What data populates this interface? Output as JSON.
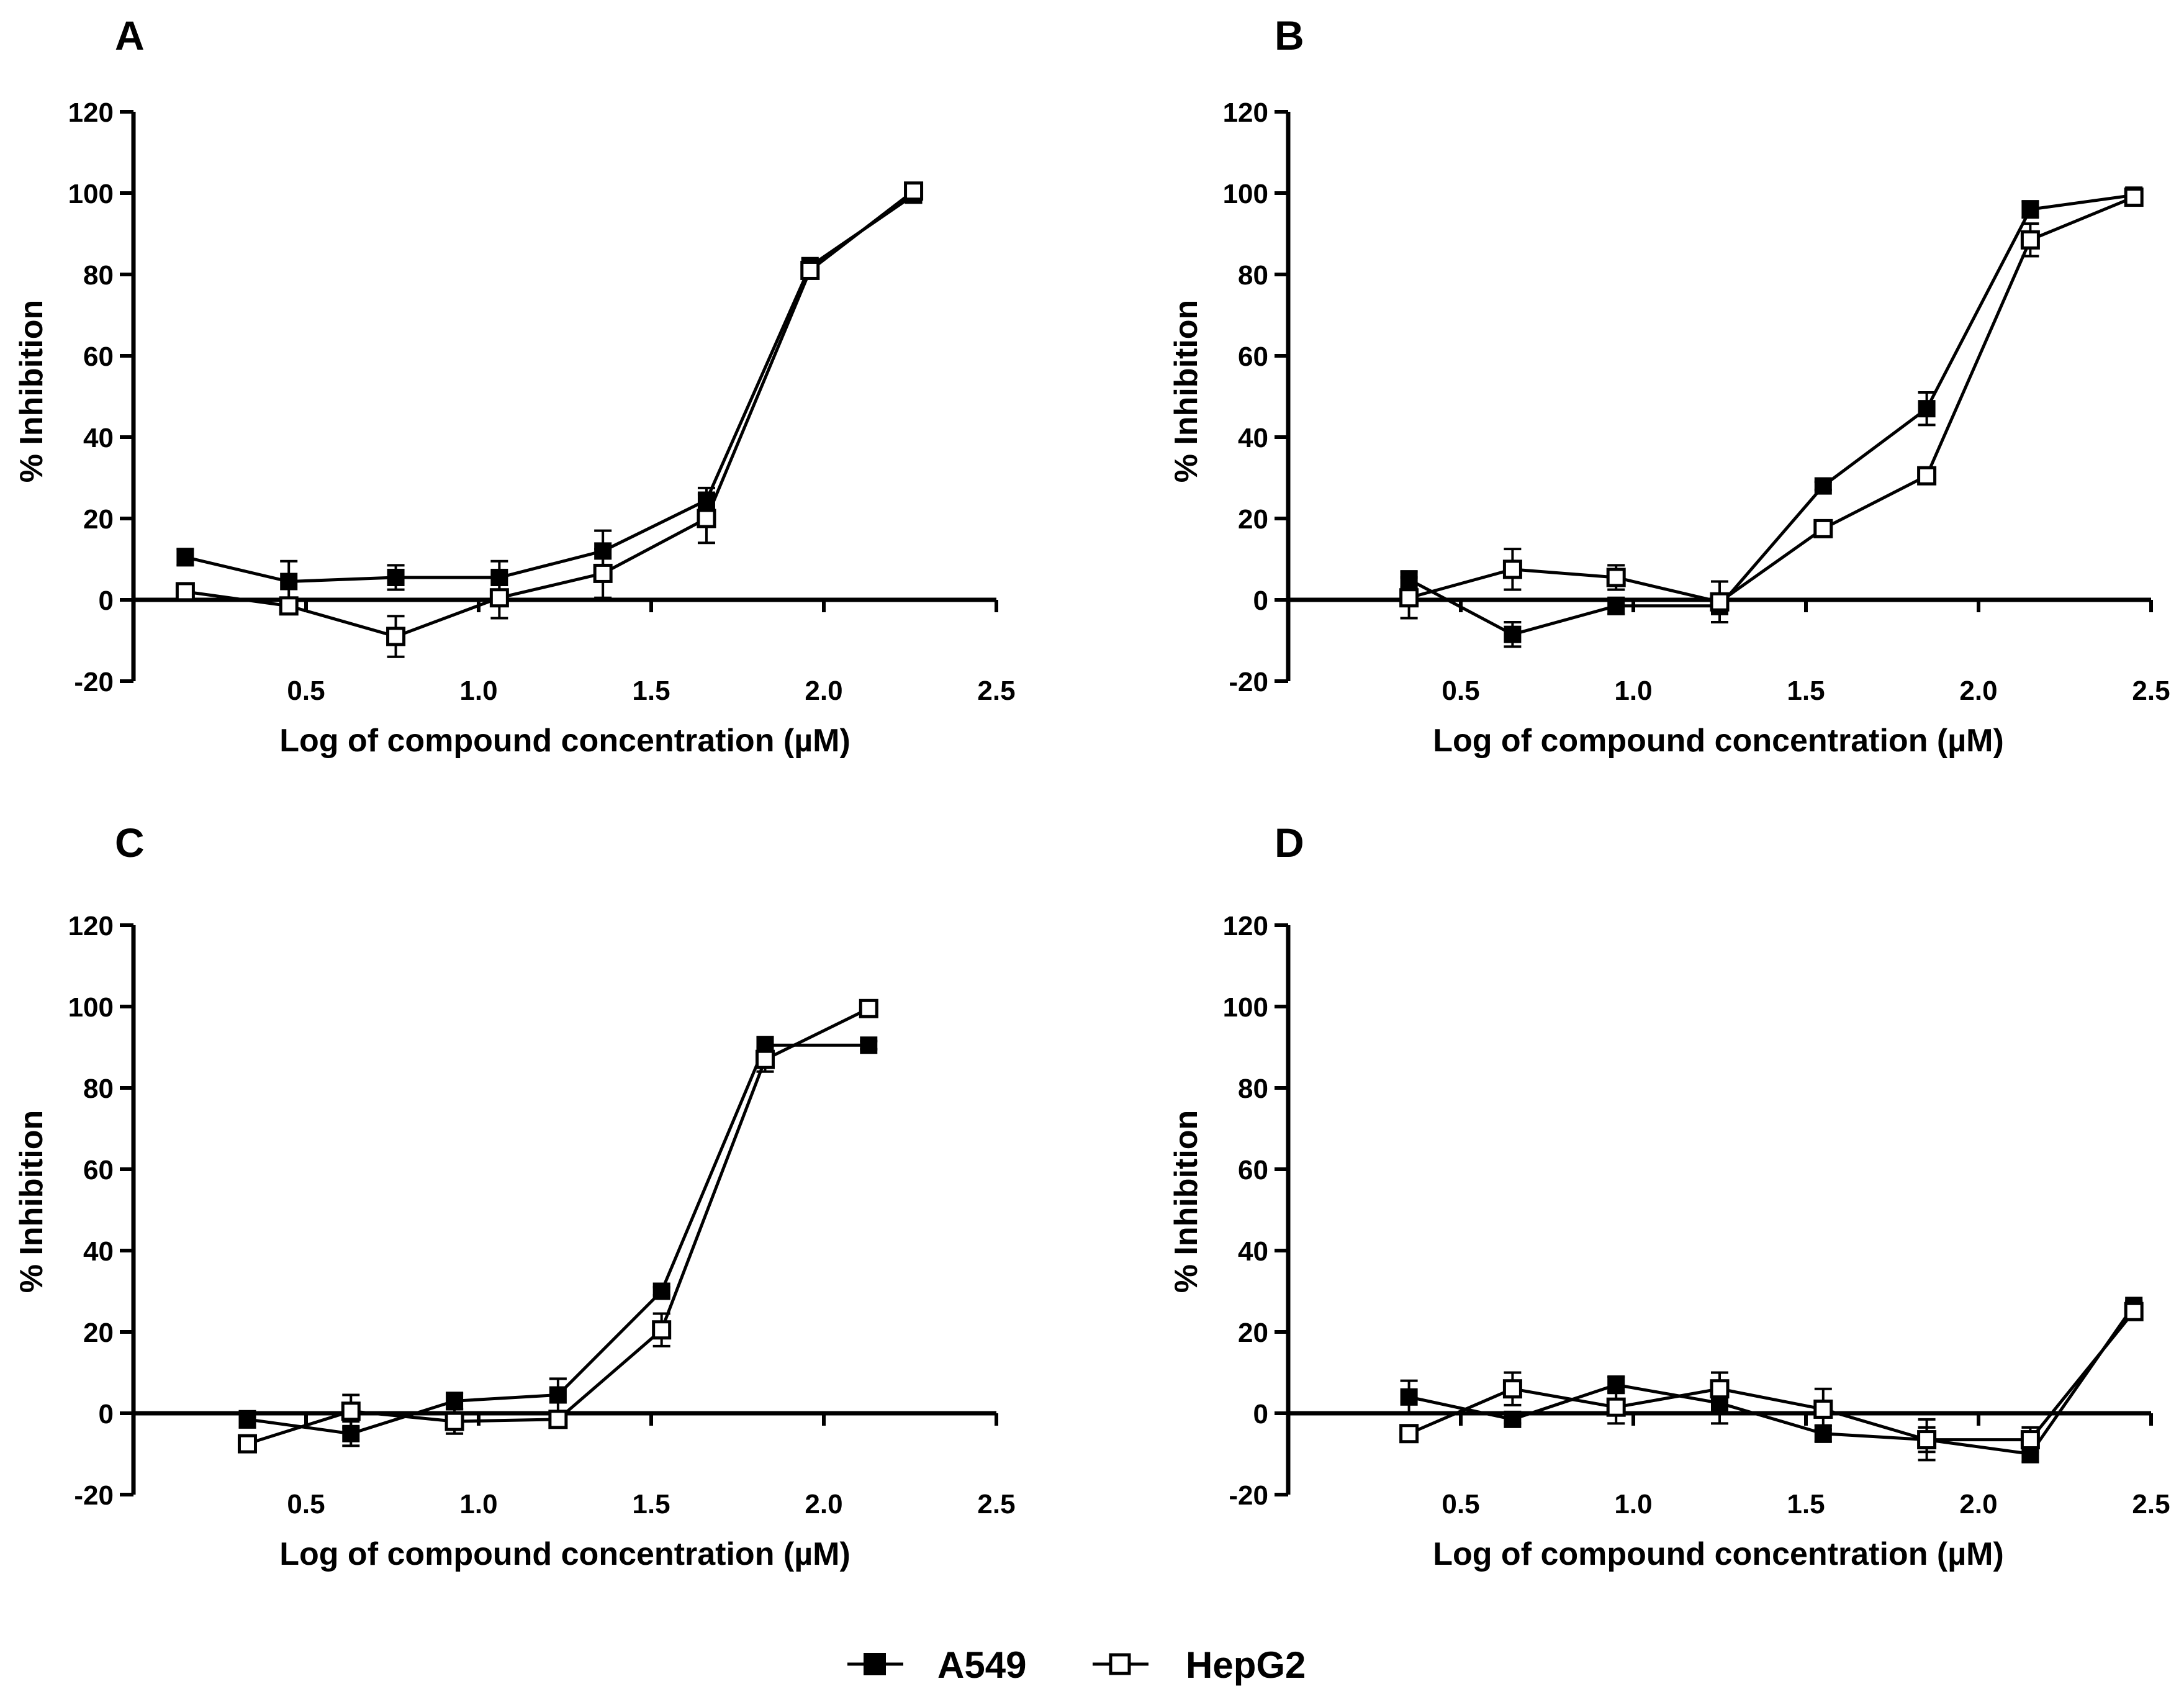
{
  "legend": {
    "series_a": "A549",
    "series_b": "HepG2"
  },
  "chart_data": [
    {
      "panel": "A",
      "type": "line",
      "xlabel": "Log of compound concentration (µM)",
      "ylabel": "% Inhibition",
      "xlim": [
        0.0,
        2.5
      ],
      "ylim": [
        -20,
        120
      ],
      "xticks": [
        "0.5",
        "1.0",
        "1.5",
        "2.0",
        "2.5"
      ],
      "yticks": [
        "-20",
        "0",
        "20",
        "40",
        "60",
        "80",
        "100",
        "120"
      ],
      "series": [
        {
          "name": "A549",
          "x": [
            0.15,
            0.45,
            0.76,
            1.06,
            1.36,
            1.66,
            1.96,
            2.26
          ],
          "y": [
            10.5,
            4.5,
            5.5,
            5.5,
            12,
            24.5,
            82,
            99.5
          ],
          "err": [
            2,
            5,
            3,
            4,
            5,
            3,
            2,
            1
          ]
        },
        {
          "name": "HepG2",
          "x": [
            0.15,
            0.45,
            0.76,
            1.06,
            1.36,
            1.66,
            1.96,
            2.26
          ],
          "y": [
            2,
            -1.5,
            -9,
            0.5,
            6.5,
            20,
            81,
            100.5
          ],
          "err": [
            1,
            2,
            5,
            5,
            6,
            6,
            2,
            1
          ]
        }
      ]
    },
    {
      "panel": "B",
      "type": "line",
      "xlabel": "Log of compound concentration (µM)",
      "ylabel": "% Inhibition",
      "xlim": [
        0.0,
        2.5
      ],
      "ylim": [
        -20,
        120
      ],
      "xticks": [
        "0.5",
        "1.0",
        "1.5",
        "2.0",
        "2.5"
      ],
      "yticks": [
        "-20",
        "0",
        "20",
        "40",
        "60",
        "80",
        "100",
        "120"
      ],
      "series": [
        {
          "name": "A549",
          "x": [
            0.35,
            0.65,
            0.95,
            1.25,
            1.55,
            1.85,
            2.15,
            2.45
          ],
          "y": [
            5,
            -8.5,
            -1.5,
            -1.5,
            28,
            47,
            96,
            99.5
          ],
          "err": [
            2,
            3,
            2,
            2,
            1,
            4,
            2,
            1
          ]
        },
        {
          "name": "HepG2",
          "x": [
            0.35,
            0.65,
            0.95,
            1.25,
            1.55,
            1.85,
            2.15,
            2.45
          ],
          "y": [
            0.5,
            7.5,
            5.5,
            -0.5,
            17.5,
            30.5,
            88.5,
            99
          ],
          "err": [
            5,
            5,
            3,
            5,
            1,
            2,
            4,
            1
          ]
        }
      ]
    },
    {
      "panel": "C",
      "type": "line",
      "xlabel": "Log of compound concentration (µM)",
      "ylabel": "% Inhibition",
      "xlim": [
        0.0,
        2.5
      ],
      "ylim": [
        -20,
        120
      ],
      "xticks": [
        "0.5",
        "1.0",
        "1.5",
        "2.0",
        "2.5"
      ],
      "yticks": [
        "-20",
        "0",
        "20",
        "40",
        "60",
        "80",
        "100",
        "120"
      ],
      "series": [
        {
          "name": "A549",
          "x": [
            0.33,
            0.63,
            0.93,
            1.23,
            1.53,
            1.83,
            2.13
          ],
          "y": [
            -1.5,
            -5,
            3,
            4.5,
            30,
            90.5,
            90.5
          ],
          "err": [
            2,
            3,
            2,
            4,
            1,
            2,
            1
          ]
        },
        {
          "name": "HepG2",
          "x": [
            0.33,
            0.63,
            0.93,
            1.23,
            1.53,
            1.83,
            2.13
          ],
          "y": [
            -7.5,
            0.5,
            -2,
            -1.5,
            20.5,
            87,
            99.5
          ],
          "err": [
            2,
            4,
            3,
            2,
            4,
            3,
            1
          ]
        }
      ]
    },
    {
      "panel": "D",
      "type": "line",
      "xlabel": "Log of compound concentration (µM)",
      "ylabel": "% Inhibition",
      "xlim": [
        0.0,
        2.5
      ],
      "ylim": [
        -20,
        120
      ],
      "xticks": [
        "0.5",
        "1.0",
        "1.5",
        "2.0",
        "2.5"
      ],
      "yticks": [
        "-20",
        "0",
        "20",
        "40",
        "60",
        "80",
        "100",
        "120"
      ],
      "series": [
        {
          "name": "A549",
          "x": [
            0.35,
            0.65,
            0.95,
            1.25,
            1.55,
            1.85,
            2.15,
            2.45
          ],
          "y": [
            4,
            -1.5,
            7,
            2.5,
            -5,
            -6.5,
            -10,
            26.5
          ],
          "err": [
            4,
            1,
            2,
            5,
            2,
            5,
            2,
            1
          ]
        },
        {
          "name": "HepG2",
          "x": [
            0.35,
            0.65,
            0.95,
            1.25,
            1.55,
            1.85,
            2.15,
            2.45
          ],
          "y": [
            -5,
            6,
            1.5,
            6,
            1,
            -6.5,
            -6.5,
            25
          ],
          "err": [
            1,
            4,
            4,
            4,
            5,
            3,
            3,
            1
          ]
        }
      ]
    }
  ]
}
